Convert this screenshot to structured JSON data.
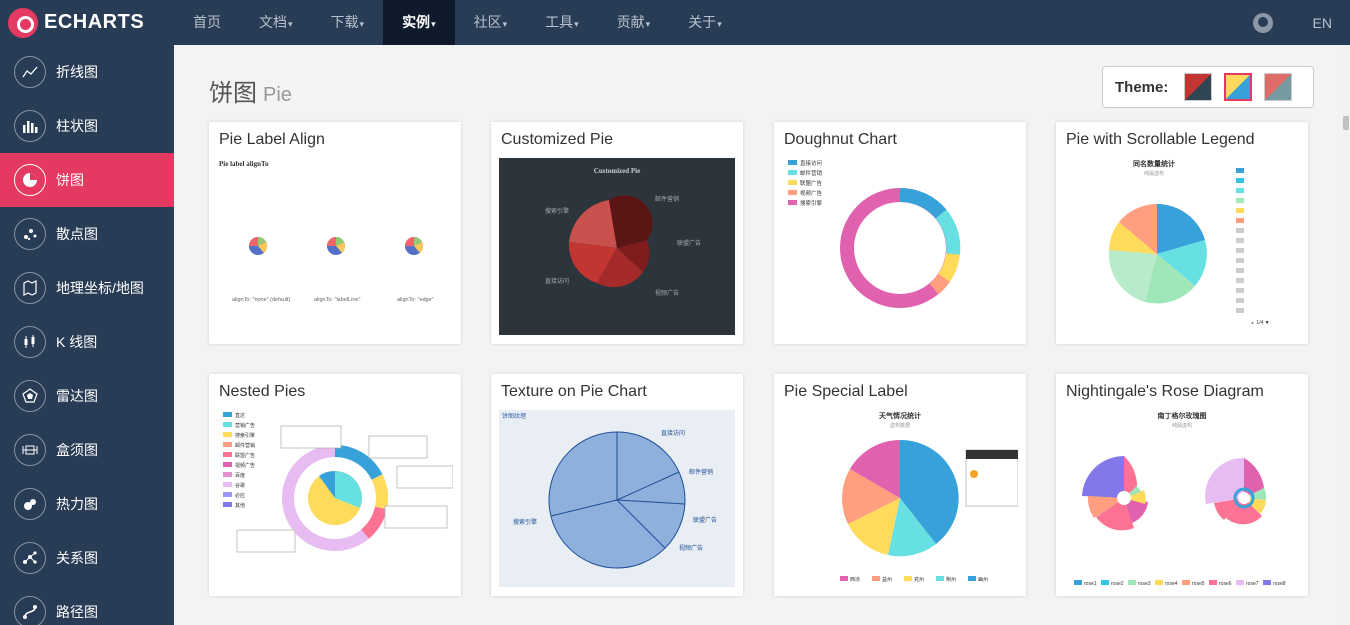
{
  "nav": {
    "logo_text": "ECHARTS",
    "items": [
      {
        "label": "首页",
        "caret": ""
      },
      {
        "label": "文档",
        "caret": "▾"
      },
      {
        "label": "下载",
        "caret": "▾"
      },
      {
        "label": "实例",
        "caret": "▾"
      },
      {
        "label": "社区",
        "caret": "▾"
      },
      {
        "label": "工具",
        "caret": "▾"
      },
      {
        "label": "贡献",
        "caret": "▾"
      },
      {
        "label": "关于",
        "caret": "▾"
      }
    ],
    "lang": "EN"
  },
  "sidebar": {
    "items": [
      {
        "label": "折线图",
        "icon": "line-chart-icon"
      },
      {
        "label": "柱状图",
        "icon": "bar-chart-icon"
      },
      {
        "label": "饼图",
        "icon": "pie-chart-icon"
      },
      {
        "label": "散点图",
        "icon": "scatter-chart-icon"
      },
      {
        "label": "地理坐标/地图",
        "icon": "map-icon"
      },
      {
        "label": "K 线图",
        "icon": "candlestick-icon"
      },
      {
        "label": "雷达图",
        "icon": "radar-icon"
      },
      {
        "label": "盒须图",
        "icon": "boxplot-icon"
      },
      {
        "label": "热力图",
        "icon": "heatmap-icon"
      },
      {
        "label": "关系图",
        "icon": "graph-icon"
      },
      {
        "label": "路径图",
        "icon": "lines-icon"
      }
    ]
  },
  "page": {
    "title": "饼图",
    "subtitle": "Pie",
    "theme_label": "Theme:"
  },
  "cards": [
    {
      "title": "Pie Label Align",
      "thumb_title": "Pie label alignTo",
      "captions": [
        "alignTo: \"none\" (default)",
        "alignTo: \"labelLine\"",
        "alignTo: \"edge\""
      ]
    },
    {
      "title": "Customized Pie",
      "thumb_title": "Customized Pie",
      "labels": [
        "搜索引擎",
        "邮件营销",
        "联盟广告",
        "视频广告",
        "直接访问"
      ]
    },
    {
      "title": "Doughnut Chart",
      "legend": [
        "直接访问",
        "邮件营销",
        "联盟广告",
        "视频广告",
        "搜索引擎"
      ]
    },
    {
      "title": "Pie with Scrollable Legend",
      "thumb_title": "同名数量统计",
      "thumb_sub": "纯属虚构",
      "pager": "1/4"
    },
    {
      "title": "Nested Pies",
      "legend": [
        "直达",
        "营销广告",
        "搜索引擎",
        "邮件营销",
        "联盟广告",
        "视频广告",
        "百度",
        "谷歌",
        "必应",
        "其他"
      ]
    },
    {
      "title": "Texture on Pie Chart",
      "thumb_title": "饼图纹理",
      "labels": [
        "直接访问",
        "邮件营销",
        "联盟广告",
        "视频广告",
        "搜索引擎"
      ]
    },
    {
      "title": "Pie Special Label",
      "thumb_title": "天气情况统计",
      "thumb_sub": "虚构数据",
      "legend": [
        "西凉",
        "益州",
        "兖州",
        "荆州",
        "幽州"
      ]
    },
    {
      "title": "Nightingale's Rose Diagram",
      "thumb_title": "南丁格尔玫瑰图",
      "thumb_sub": "纯属虚构",
      "legend": [
        "rose1",
        "rose2",
        "rose3",
        "rose4",
        "rose5",
        "rose6",
        "rose7",
        "rose8"
      ]
    }
  ],
  "colors": {
    "nav_bg": "#293c55",
    "accent": "#e43961",
    "active_nav": "#0e1a2b"
  }
}
